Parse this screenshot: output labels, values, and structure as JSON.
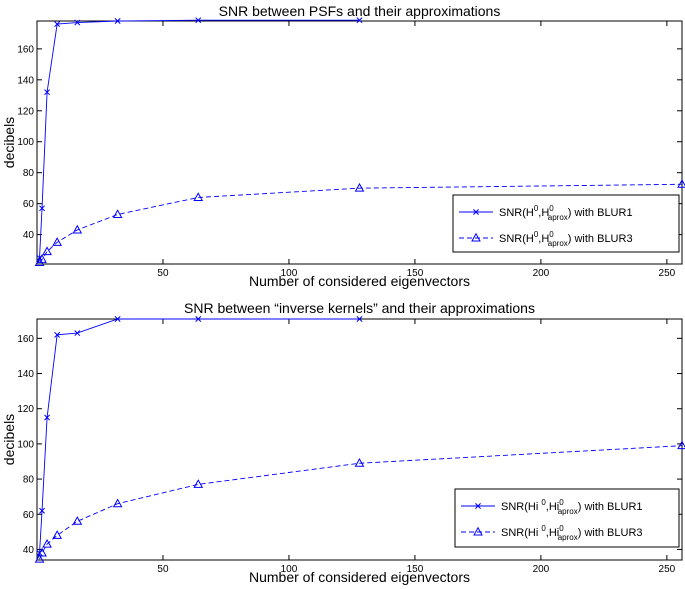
{
  "chart_data": [
    {
      "type": "line",
      "title": "SNR between PSFs and their approximations",
      "xlabel": "Number of considered eigenvectors",
      "ylabel": "decibels",
      "xlim": [
        0,
        256
      ],
      "ylim": [
        21,
        178
      ],
      "xticks": [
        50,
        100,
        150,
        200,
        250
      ],
      "yticks": [
        40,
        60,
        80,
        100,
        120,
        140,
        160
      ],
      "grid": false,
      "legend_position": "bottom-right",
      "series": [
        {
          "name": "SNR(H 0,Haprox0) with BLUR1",
          "legend": {
            "pre": "SNR(H",
            "sup1": "0",
            "mid": ",H",
            "sup2": "0",
            "sub": "aprox",
            "post": ") with BLUR1"
          },
          "color": "#0000ff",
          "linestyle": "solid",
          "marker": "x",
          "x": [
            1,
            2,
            4,
            8,
            16,
            32,
            64,
            128
          ],
          "y": [
            25,
            57,
            132,
            176,
            177,
            178,
            178.5,
            178.5
          ]
        },
        {
          "name": "SNR(H 0,Haprox0) with BLUR3",
          "legend": {
            "pre": "SNR(H",
            "sup1": "0",
            "mid": ",H",
            "sup2": "0",
            "sub": "aprox",
            "post": ") with BLUR3"
          },
          "color": "#0000ff",
          "linestyle": "dashed",
          "marker": "triangle",
          "x": [
            1,
            2,
            4,
            8,
            16,
            32,
            64,
            128,
            256
          ],
          "y": [
            22,
            24,
            29,
            35,
            43,
            53,
            64,
            70,
            72.5
          ]
        }
      ]
    },
    {
      "type": "line",
      "title": "SNR between “inverse kernels” and their approximations",
      "xlabel": "Number of considered eigenvectors",
      "ylabel": "decibels",
      "xlim": [
        0,
        256
      ],
      "ylim": [
        34,
        171
      ],
      "xticks": [
        50,
        100,
        150,
        200,
        250
      ],
      "yticks": [
        40,
        60,
        80,
        100,
        120,
        140,
        160
      ],
      "grid": false,
      "legend_position": "bottom-right",
      "series": [
        {
          "name": "SNR(Hi 0,Hiaprox0) with BLUR1",
          "legend": {
            "pre": "SNR(Hi ",
            "sup1": "0",
            "mid": ",Hi",
            "sup2": "0",
            "sub": "aprox",
            "post": ") with BLUR1"
          },
          "color": "#0000ff",
          "linestyle": "solid",
          "marker": "x",
          "x": [
            1,
            2,
            4,
            8,
            16,
            32,
            64,
            128
          ],
          "y": [
            38,
            62,
            115,
            162,
            163,
            171,
            171,
            171
          ]
        },
        {
          "name": "SNR(Hi 0,Hiaprox0) with BLUR3",
          "legend": {
            "pre": "SNR(Hi ",
            "sup1": "0",
            "mid": ",Hi",
            "sup2": "0",
            "sub": "aprox",
            "post": ") with BLUR3"
          },
          "color": "#0000ff",
          "linestyle": "dashed",
          "marker": "triangle",
          "x": [
            1,
            2,
            4,
            8,
            16,
            32,
            64,
            128,
            256
          ],
          "y": [
            34.5,
            38,
            43,
            48,
            56,
            66,
            77,
            89,
            99
          ]
        }
      ]
    }
  ]
}
